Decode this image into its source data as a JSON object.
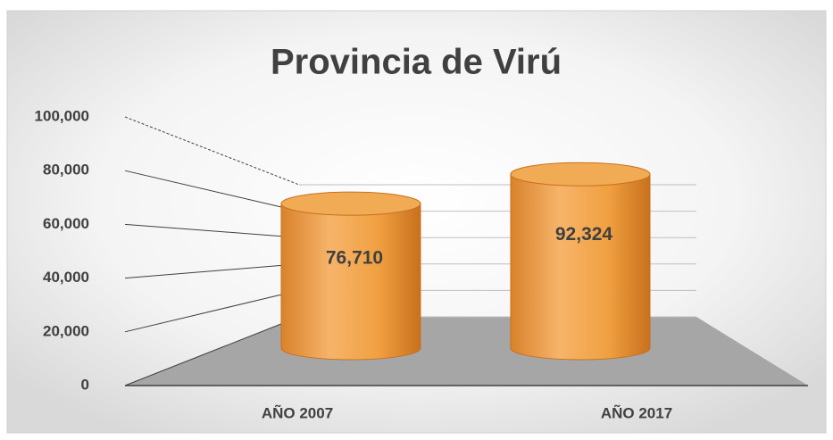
{
  "chart_data": {
    "type": "bar3d",
    "title": "Provincia de Virú",
    "categories": [
      "AÑO 2007",
      "AÑO 2017"
    ],
    "values": [
      76710,
      92324
    ],
    "value_labels": [
      "76,710",
      "92,324"
    ],
    "color": "#f0a040",
    "ylim": [
      0,
      100000
    ],
    "yticks": [
      0,
      {
        "value": 20000,
        "label": "20,000"
      },
      {
        "value": 40000,
        "label": "40,000"
      },
      {
        "value": 60000,
        "label": "60,000"
      },
      {
        "value": 80000,
        "label": "80,000"
      },
      {
        "value": 100000,
        "label": "100,000"
      }
    ],
    "grid": true
  }
}
